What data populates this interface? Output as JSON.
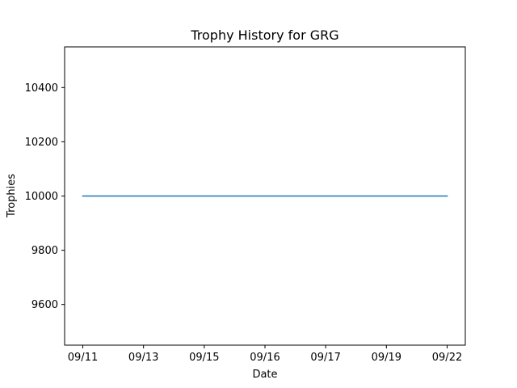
{
  "chart_data": {
    "type": "line",
    "title": "Trophy History for GRG",
    "xlabel": "Date",
    "ylabel": "Trophies",
    "x_tick_labels": [
      "09/11",
      "09/13",
      "09/15",
      "09/16",
      "09/17",
      "09/19",
      "09/22"
    ],
    "y_ticks": [
      9600,
      9800,
      10000,
      10200,
      10400
    ],
    "ylim": [
      9450,
      10550
    ],
    "grid": false,
    "legend": "none",
    "series": [
      {
        "color": "#1f77b4",
        "x": [
          "09/11",
          "09/13",
          "09/15",
          "09/16",
          "09/17",
          "09/19",
          "09/22"
        ],
        "values": [
          10000,
          10000,
          10000,
          10000,
          10000,
          10000,
          10000
        ]
      }
    ]
  }
}
